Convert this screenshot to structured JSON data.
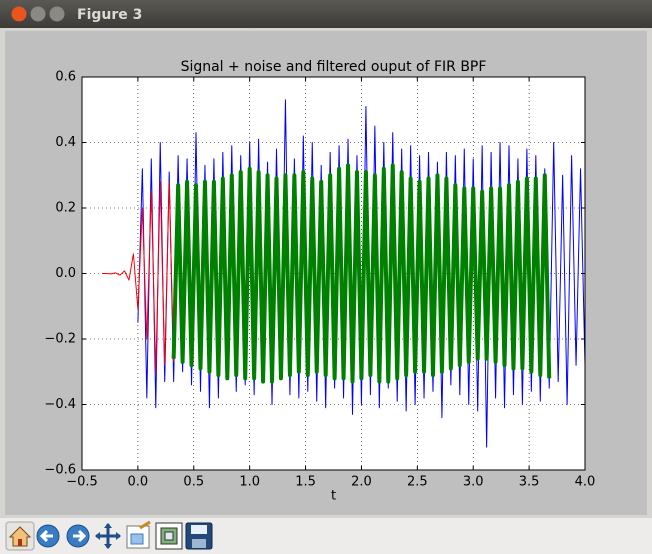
{
  "window_title": "Figure 3",
  "chart_data": {
    "type": "line",
    "title": "Signal + noise and filtered ouput of FIR BPF",
    "xlabel": "t",
    "xlim": [
      -0.5,
      4.0
    ],
    "xticks": [
      {
        "value": -0.5,
        "label": "−0.5"
      },
      {
        "value": 0,
        "label": "0.0"
      },
      {
        "value": 0.5,
        "label": "0.5"
      },
      {
        "value": 1,
        "label": "1.0"
      },
      {
        "value": 1.5,
        "label": "1.5"
      },
      {
        "value": 2,
        "label": "2.0"
      },
      {
        "value": 2.5,
        "label": "2.5"
      },
      {
        "value": 3,
        "label": "3.0"
      },
      {
        "value": 3.5,
        "label": "3.5"
      },
      {
        "value": 4,
        "label": "4.0"
      }
    ],
    "ylim": [
      -0.6,
      0.6
    ],
    "yticks": [
      {
        "value": -0.6,
        "label": "−0.6"
      },
      {
        "value": -0.4,
        "label": "−0.4"
      },
      {
        "value": -0.2,
        "label": "−0.2"
      },
      {
        "value": 0,
        "label": "0.0"
      },
      {
        "value": 0.2,
        "label": "0.2"
      },
      {
        "value": 0.4,
        "label": "0.4"
      },
      {
        "value": 0.6,
        "label": "0.6"
      }
    ],
    "grid": true,
    "series": [
      {
        "color": "#0000ff",
        "width": 1,
        "x": [
          0,
          0.04,
          0.08,
          0.12,
          0.16,
          0.2,
          0.24,
          0.28,
          0.32,
          0.36,
          0.4,
          0.44,
          0.48,
          0.52,
          0.56,
          0.6,
          0.64,
          0.68,
          0.72,
          0.76,
          0.8,
          0.84,
          0.88,
          0.92,
          0.96,
          1.0,
          1.04,
          1.08,
          1.12,
          1.16,
          1.2,
          1.24,
          1.28,
          1.32,
          1.36,
          1.4,
          1.44,
          1.48,
          1.52,
          1.56,
          1.6,
          1.64,
          1.68,
          1.72,
          1.76,
          1.8,
          1.84,
          1.88,
          1.92,
          1.96,
          2.0,
          2.04,
          2.08,
          2.12,
          2.16,
          2.2,
          2.24,
          2.28,
          2.32,
          2.36,
          2.4,
          2.44,
          2.48,
          2.52,
          2.56,
          2.6,
          2.64,
          2.68,
          2.72,
          2.76,
          2.8,
          2.84,
          2.88,
          2.92,
          2.96,
          3.0,
          3.04,
          3.08,
          3.12,
          3.16,
          3.2,
          3.24,
          3.28,
          3.32,
          3.36,
          3.4,
          3.44,
          3.48,
          3.52,
          3.56,
          3.6,
          3.64,
          3.68,
          3.72,
          3.76,
          3.8,
          3.84,
          3.88,
          3.92,
          3.96,
          4.0
        ],
        "values": [
          -0.15,
          0.32,
          -0.38,
          0.35,
          -0.41,
          0.4,
          -0.33,
          0.31,
          -0.33,
          0.36,
          -0.3,
          0.35,
          -0.34,
          0.43,
          -0.36,
          0.33,
          -0.41,
          0.35,
          -0.38,
          0.37,
          -0.32,
          0.39,
          -0.36,
          0.36,
          -0.34,
          0.4,
          -0.37,
          0.41,
          -0.33,
          0.34,
          -0.4,
          0.38,
          -0.31,
          0.53,
          -0.37,
          0.35,
          -0.38,
          0.42,
          -0.36,
          0.4,
          -0.39,
          0.33,
          -0.41,
          0.37,
          -0.35,
          0.39,
          -0.38,
          0.41,
          -0.43,
          0.36,
          -0.4,
          0.51,
          -0.37,
          0.45,
          -0.41,
          0.4,
          -0.35,
          0.43,
          -0.39,
          0.38,
          -0.42,
          0.39,
          -0.4,
          0.36,
          -0.38,
          0.37,
          -0.36,
          0.34,
          -0.44,
          0.37,
          -0.34,
          0.36,
          -0.37,
          0.38,
          -0.4,
          0.35,
          -0.42,
          0.39,
          -0.53,
          0.37,
          -0.38,
          0.4,
          -0.41,
          0.39,
          -0.37,
          0.35,
          -0.4,
          0.38,
          -0.36,
          0.36,
          -0.39,
          0.32,
          -0.35,
          0.4,
          -0.33,
          0.3,
          -0.4,
          0.36,
          -0.28,
          0.32,
          -0.28
        ]
      },
      {
        "color": "#ff0000",
        "width": 1,
        "x": [
          -0.32,
          -0.28,
          -0.24,
          -0.2,
          -0.16,
          -0.12,
          -0.08,
          -0.04,
          0,
          0.04,
          0.08,
          0.12,
          0.16,
          0.2,
          0.24,
          0.28,
          0.32
        ],
        "values": [
          0,
          0,
          -0.001,
          0.002,
          -0.005,
          0.008,
          -0.02,
          0.06,
          -0.11,
          0.2,
          -0.2,
          0.25,
          -0.3,
          0.28,
          -0.28,
          0.28,
          -0.27
        ]
      },
      {
        "color": "#008000",
        "width": 4,
        "x": [
          0.32,
          0.36,
          0.4,
          0.44,
          0.48,
          0.52,
          0.56,
          0.6,
          0.64,
          0.68,
          0.72,
          0.76,
          0.8,
          0.84,
          0.88,
          0.92,
          0.96,
          1.0,
          1.04,
          1.08,
          1.12,
          1.16,
          1.2,
          1.24,
          1.28,
          1.32,
          1.36,
          1.4,
          1.44,
          1.48,
          1.52,
          1.56,
          1.6,
          1.64,
          1.68,
          1.72,
          1.76,
          1.8,
          1.84,
          1.88,
          1.92,
          1.96,
          2.0,
          2.04,
          2.08,
          2.12,
          2.16,
          2.2,
          2.24,
          2.28,
          2.32,
          2.36,
          2.4,
          2.44,
          2.48,
          2.52,
          2.56,
          2.6,
          2.64,
          2.68,
          2.72,
          2.76,
          2.8,
          2.84,
          2.88,
          2.92,
          2.96,
          3.0,
          3.04,
          3.08,
          3.12,
          3.16,
          3.2,
          3.24,
          3.28,
          3.32,
          3.36,
          3.4,
          3.44,
          3.48,
          3.52,
          3.56,
          3.6,
          3.64,
          3.68
        ],
        "values": [
          -0.26,
          0.27,
          -0.27,
          0.28,
          -0.28,
          0.27,
          -0.29,
          0.28,
          -0.3,
          0.28,
          -0.31,
          0.29,
          -0.32,
          0.3,
          -0.31,
          0.31,
          -0.32,
          0.32,
          -0.32,
          0.31,
          -0.33,
          0.3,
          -0.33,
          0.29,
          -0.32,
          0.3,
          -0.31,
          0.3,
          -0.3,
          0.31,
          -0.31,
          0.29,
          -0.3,
          0.28,
          -0.31,
          0.3,
          -0.32,
          0.32,
          -0.32,
          0.33,
          -0.33,
          0.31,
          -0.32,
          0.31,
          -0.31,
          0.3,
          -0.33,
          0.32,
          -0.33,
          0.33,
          -0.32,
          0.31,
          -0.31,
          0.29,
          -0.3,
          0.28,
          -0.3,
          0.29,
          -0.31,
          0.3,
          -0.3,
          0.29,
          -0.29,
          0.27,
          -0.28,
          0.26,
          -0.27,
          0.26,
          -0.26,
          0.25,
          -0.26,
          0.26,
          -0.27,
          0.26,
          -0.28,
          0.27,
          -0.29,
          0.28,
          -0.29,
          0.29,
          -0.3,
          0.29,
          -0.31,
          0.3,
          -0.32
        ]
      }
    ]
  }
}
